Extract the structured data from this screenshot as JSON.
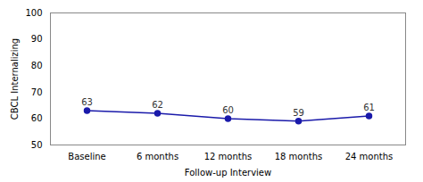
{
  "chart_data": {
    "type": "line",
    "categories": [
      "Baseline",
      "6 months",
      "12 months",
      "18 months",
      "24 months"
    ],
    "values": [
      63,
      62,
      60,
      59,
      61
    ],
    "xlabel": "Follow-up Interview",
    "ylabel": "CBCL Internalizing",
    "ylim": [
      50,
      100
    ],
    "yticks": [
      50,
      60,
      70,
      80,
      90,
      100
    ],
    "color": "#1a1aaa",
    "marker": "circle",
    "data_labels": true,
    "grid": false
  }
}
